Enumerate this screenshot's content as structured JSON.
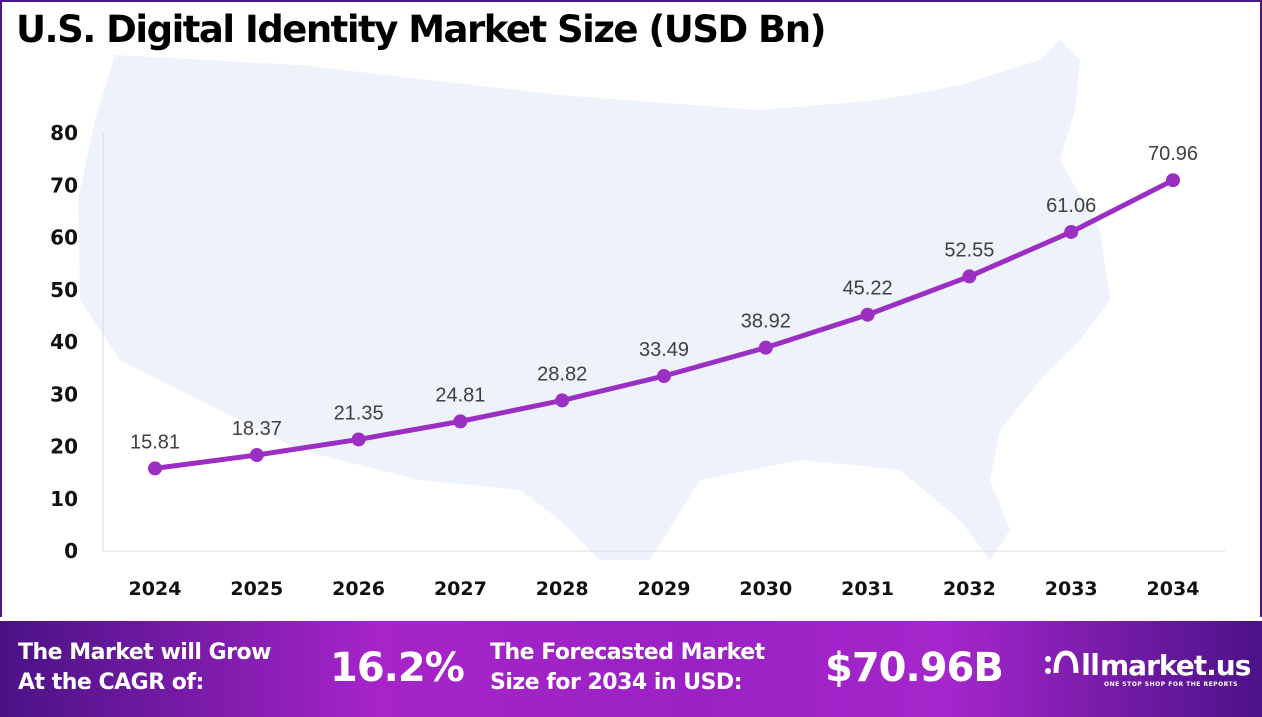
{
  "chart_data": {
    "type": "line",
    "title": "U.S. Digital Identity Market Size (USD Bn)",
    "categories": [
      "2024",
      "2025",
      "2026",
      "2027",
      "2028",
      "2029",
      "2030",
      "2031",
      "2032",
      "2033",
      "2034"
    ],
    "values": [
      15.81,
      18.37,
      21.35,
      24.81,
      28.82,
      33.49,
      38.92,
      45.22,
      52.55,
      61.06,
      70.96
    ],
    "data_labels": [
      "15.81",
      "18.37",
      "21.35",
      "24.81",
      "28.82",
      "33.49",
      "38.92",
      "45.22",
      "52.55",
      "61.06",
      "70.96"
    ],
    "yticks": [
      "0",
      "10",
      "20",
      "30",
      "40",
      "50",
      "60",
      "70",
      "80"
    ],
    "ylim": [
      0,
      80
    ],
    "grid": false,
    "line_color": "#9b2fc4",
    "background_map_color": "#eef3fb"
  },
  "banner": {
    "cagr_label_line1": "The Market will Grow",
    "cagr_label_line2": "At the CAGR of:",
    "cagr_value": "16.2%",
    "forecast_label_line1": "The Forecasted Market",
    "forecast_label_line2": "Size for 2034 in USD:",
    "forecast_value": "$70.96B",
    "logo_name": "market.us",
    "logo_tagline": "ONE STOP SHOP FOR THE REPORTS"
  }
}
